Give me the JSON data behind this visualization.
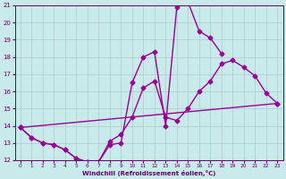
{
  "xlabel": "Windchill (Refroidissement éolien,°C)",
  "ylabel": "",
  "xlim": [
    -0.5,
    23.5
  ],
  "ylim": [
    12,
    21
  ],
  "xticks": [
    0,
    1,
    2,
    3,
    4,
    5,
    6,
    7,
    8,
    9,
    10,
    11,
    12,
    13,
    14,
    15,
    16,
    17,
    18,
    19,
    20,
    21,
    22,
    23
  ],
  "yticks": [
    12,
    13,
    14,
    15,
    16,
    17,
    18,
    19,
    20,
    21
  ],
  "background_color": "#c8eaea",
  "line_color": "#990099",
  "grid_color": "#b0c8c8",
  "line_width": 1.0,
  "marker": "D",
  "marker_size": 2.5,
  "lines": [
    {
      "x": [
        0,
        1,
        2,
        3,
        4,
        5,
        6,
        7,
        8,
        9,
        10,
        11,
        12,
        13,
        14,
        15,
        16,
        17,
        18
      ],
      "y": [
        13.9,
        13.3,
        13.0,
        12.9,
        12.6,
        12.1,
        11.9,
        11.9,
        12.9,
        13.0,
        16.5,
        18.0,
        18.3,
        14.0,
        20.9,
        21.2,
        19.5,
        19.1,
        18.2
      ]
    },
    {
      "x": [
        0,
        1,
        2,
        3,
        4,
        5,
        6,
        7,
        8,
        9,
        10,
        11,
        12,
        13,
        14,
        15,
        16,
        17,
        18,
        19,
        20,
        21,
        22,
        23
      ],
      "y": [
        13.9,
        13.3,
        13.0,
        12.9,
        12.6,
        12.1,
        11.9,
        11.9,
        13.1,
        13.5,
        14.5,
        16.2,
        16.6,
        14.5,
        14.3,
        15.0,
        16.0,
        16.6,
        17.6,
        17.8,
        17.4,
        16.9,
        15.9,
        15.3
      ]
    },
    {
      "x": [
        0,
        23
      ],
      "y": [
        13.9,
        15.3
      ]
    }
  ]
}
